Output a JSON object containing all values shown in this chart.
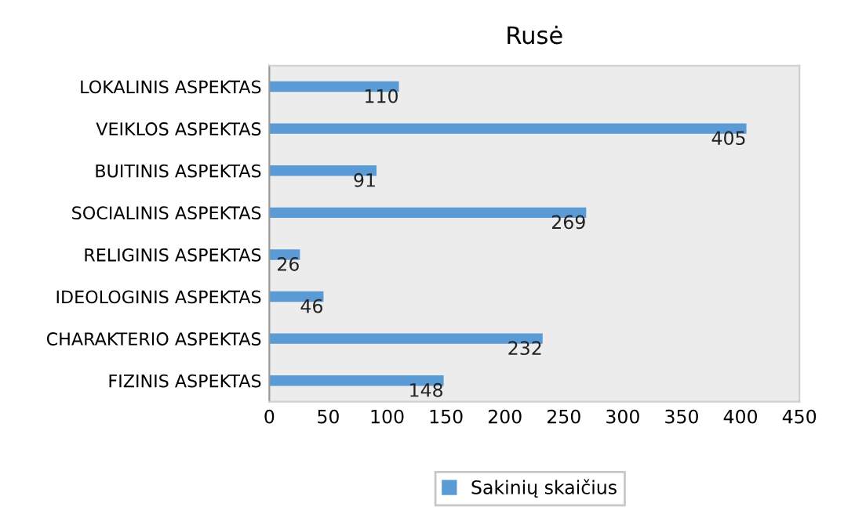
{
  "chart_data": {
    "type": "bar",
    "orientation": "horizontal",
    "title": "Rusė",
    "categories": [
      "LOKALINIS ASPEKTAS",
      "VEIKLOS ASPEKTAS",
      "BUITINIS ASPEKTAS",
      "SOCIALINIS ASPEKTAS",
      "RELIGINIS ASPEKTAS",
      "IDEOLOGINIS ASPEKTAS",
      "CHARAKTERIO ASPEKTAS",
      "FIZINIS ASPEKTAS"
    ],
    "series": [
      {
        "name": "Sakinių skaičius",
        "color": "#5b9bd5",
        "values": [
          110,
          405,
          91,
          269,
          26,
          46,
          232,
          148
        ]
      }
    ],
    "xlim": [
      0,
      450
    ],
    "xticks": [
      0,
      50,
      100,
      150,
      200,
      250,
      300,
      350,
      400,
      450
    ],
    "data_labels": true,
    "legend": "bottom",
    "grid": false
  }
}
